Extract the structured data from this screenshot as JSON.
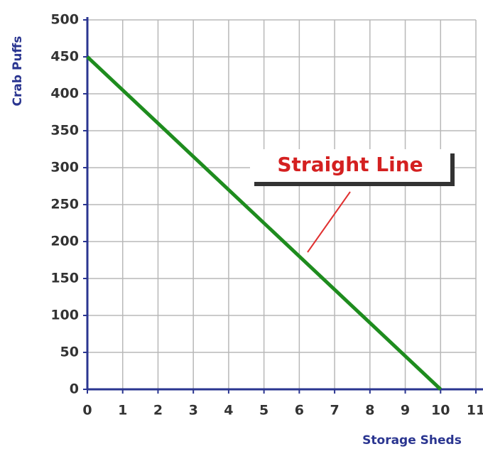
{
  "chart_data": {
    "type": "line",
    "x_label": "Storage Sheds",
    "y_label": "Crab Puffs",
    "x": [
      0,
      10
    ],
    "values": [
      450,
      0
    ],
    "color": "#1e8c1e",
    "xlim": [
      0,
      11
    ],
    "xticks": [
      0,
      1,
      2,
      3,
      4,
      5,
      6,
      7,
      8,
      9,
      10,
      11
    ],
    "ylim": [
      0,
      500
    ],
    "yticks": [
      0,
      50,
      100,
      150,
      200,
      250,
      300,
      350,
      400,
      450,
      500
    ],
    "grid": true,
    "annotations": [
      "Straight Line"
    ]
  }
}
